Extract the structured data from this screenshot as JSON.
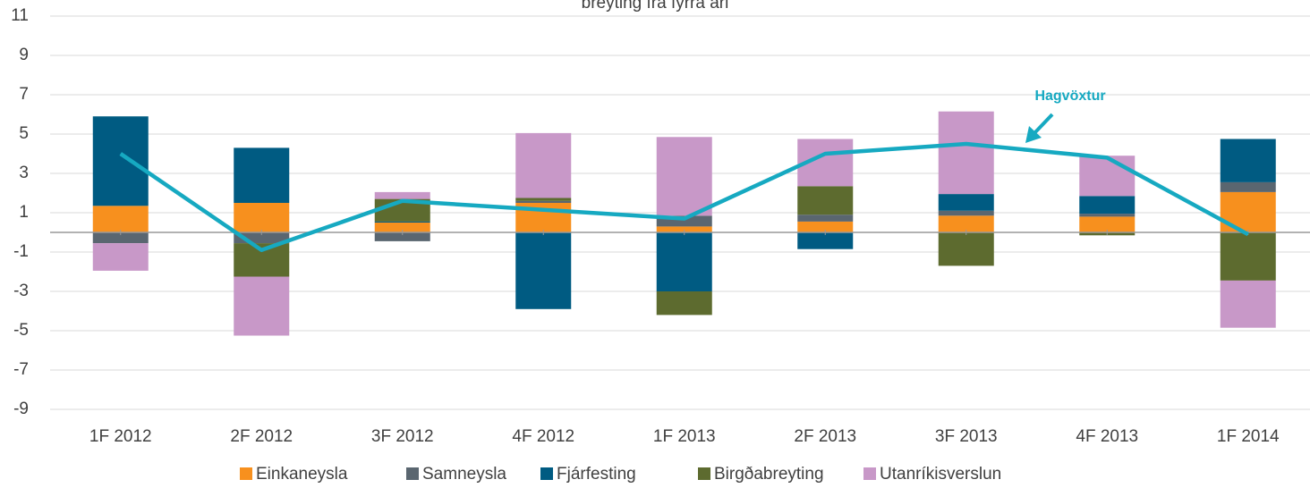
{
  "chart_data": {
    "type": "bar",
    "title": "breyting frá fyrra ári",
    "categories": [
      "1F 2012",
      "2F 2012",
      "3F 2012",
      "4F 2012",
      "1F 2013",
      "2F 2013",
      "3F 2013",
      "4F 2013",
      "1F 2014"
    ],
    "series": [
      {
        "name": "Einkaneysla",
        "color": "#f7901e",
        "values": [
          1.35,
          1.5,
          0.5,
          1.5,
          0.3,
          0.55,
          0.85,
          0.8,
          2.05
        ]
      },
      {
        "name": "Samneysla",
        "color": "#5a6670",
        "values": [
          -0.55,
          -0.55,
          -0.45,
          0.1,
          0.55,
          0.35,
          0.25,
          0.15,
          0.5
        ]
      },
      {
        "name": "Fjárfesting",
        "color": "#005b82",
        "values": [
          4.55,
          2.8,
          0.05,
          -3.9,
          -3.0,
          -0.85,
          0.85,
          0.9,
          2.2
        ]
      },
      {
        "name": "Birgðabreyting",
        "color": "#5d6b2f",
        "values": [
          0,
          -1.7,
          1.15,
          0.15,
          -1.2,
          1.45,
          -1.7,
          -0.15,
          -2.45
        ]
      },
      {
        "name": "Utanríkisverslun",
        "color": "#c898c8",
        "values": [
          -1.4,
          -3.0,
          0.35,
          3.3,
          4.0,
          2.4,
          4.2,
          2.05,
          -2.4
        ]
      },
      {
        "name": "Hagvöxtur",
        "type": "line",
        "color": "#16a9c1",
        "values": [
          4.0,
          -0.9,
          1.6,
          1.15,
          0.7,
          4.0,
          4.5,
          3.8,
          -0.1
        ]
      }
    ],
    "ylim": [
      -9,
      11
    ],
    "yticks": [
      -9,
      -7,
      -5,
      -3,
      -1,
      1,
      3,
      5,
      7,
      9,
      11
    ],
    "grid": true,
    "legend": "bottom"
  }
}
